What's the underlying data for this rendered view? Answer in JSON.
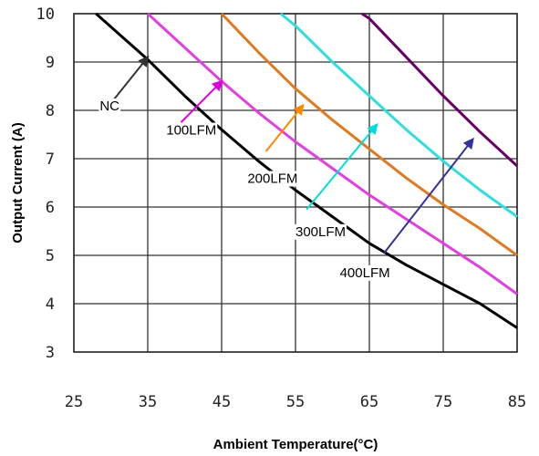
{
  "chart_data": {
    "type": "line",
    "xlabel": "Ambient Temperature(°C)",
    "ylabel": "Output Current (A)",
    "xlim": [
      25,
      85
    ],
    "ylim": [
      3,
      10
    ],
    "x_ticks": [
      "25",
      "35",
      "45",
      "55",
      "65",
      "75",
      "85"
    ],
    "y_ticks": [
      "3",
      "4",
      "5",
      "6",
      "7",
      "8",
      "9",
      "10"
    ],
    "grid": true,
    "legend": "annotations with arrows",
    "series": [
      {
        "name": "NC",
        "color": "#000000",
        "points": [
          [
            28,
            10
          ],
          [
            35,
            9.05
          ],
          [
            40,
            8.3
          ],
          [
            45,
            7.6
          ],
          [
            50,
            6.95
          ],
          [
            55,
            6.35
          ],
          [
            60,
            5.8
          ],
          [
            65,
            5.25
          ],
          [
            70,
            4.8
          ],
          [
            75,
            4.4
          ],
          [
            80,
            4.0
          ],
          [
            85,
            3.5
          ]
        ]
      },
      {
        "name": "100LFM",
        "color": "#e040e0",
        "points": [
          [
            35,
            10
          ],
          [
            40,
            9.3
          ],
          [
            45,
            8.6
          ],
          [
            50,
            7.95
          ],
          [
            55,
            7.35
          ],
          [
            60,
            6.8
          ],
          [
            65,
            6.25
          ],
          [
            70,
            5.75
          ],
          [
            75,
            5.25
          ],
          [
            80,
            4.75
          ],
          [
            85,
            4.2
          ]
        ]
      },
      {
        "name": "200LFM",
        "color": "#e07a20",
        "points": [
          [
            45,
            10
          ],
          [
            50,
            9.2
          ],
          [
            55,
            8.45
          ],
          [
            60,
            7.8
          ],
          [
            65,
            7.2
          ],
          [
            70,
            6.6
          ],
          [
            75,
            6.05
          ],
          [
            80,
            5.55
          ],
          [
            85,
            5.0
          ]
        ]
      },
      {
        "name": "300LFM",
        "color": "#33dddd",
        "points": [
          [
            53,
            10
          ],
          [
            55,
            9.75
          ],
          [
            60,
            9.0
          ],
          [
            65,
            8.3
          ],
          [
            70,
            7.6
          ],
          [
            75,
            6.95
          ],
          [
            80,
            6.35
          ],
          [
            85,
            5.8
          ]
        ]
      },
      {
        "name": "400LFM",
        "color": "#660066",
        "points": [
          [
            64,
            10
          ],
          [
            65,
            9.9
          ],
          [
            70,
            9.1
          ],
          [
            75,
            8.3
          ],
          [
            80,
            7.55
          ],
          [
            85,
            6.85
          ]
        ]
      }
    ],
    "annotations": [
      {
        "text": "NC",
        "arrow_color": "#333333",
        "arrow_from": [
          29.5,
          8.05
        ],
        "arrow_to": [
          35,
          9.1
        ],
        "label_at": [
          28.5,
          8.0
        ]
      },
      {
        "text": "100LFM",
        "arrow_color": "#dd00dd",
        "arrow_from": [
          39.5,
          7.75
        ],
        "arrow_to": [
          45,
          8.6
        ],
        "label_at": [
          37.5,
          7.5
        ]
      },
      {
        "text": "200LFM",
        "arrow_color": "#ff8800",
        "arrow_from": [
          51,
          7.15
        ],
        "arrow_to": [
          56,
          8.1
        ],
        "label_at": [
          48.5,
          6.5
        ]
      },
      {
        "text": "300LFM",
        "arrow_color": "#00dddd",
        "arrow_from": [
          56.5,
          5.95
        ],
        "arrow_to": [
          66,
          7.7
        ],
        "label_at": [
          55,
          5.4
        ]
      },
      {
        "text": "400LFM",
        "arrow_color": "#333399",
        "arrow_from": [
          67,
          5.05
        ],
        "arrow_to": [
          79,
          7.4
        ],
        "label_at": [
          61,
          4.55
        ]
      }
    ]
  }
}
